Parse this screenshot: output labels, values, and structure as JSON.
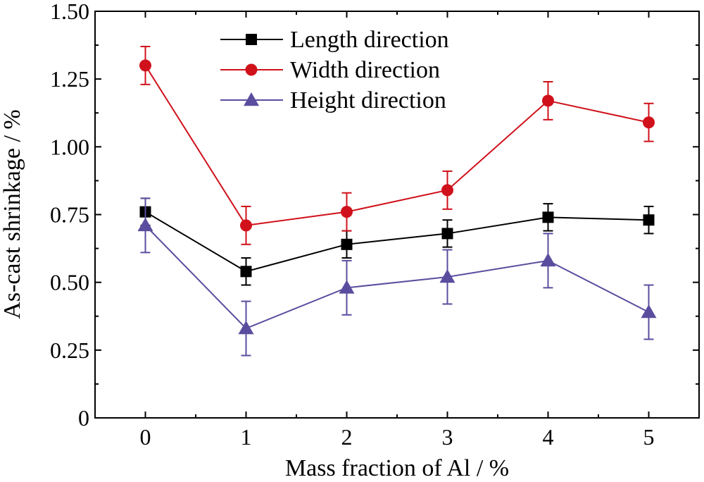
{
  "colors": {
    "length": "#000000",
    "width": "#d0111b",
    "height": "#5b4d9e"
  },
  "chart_data": {
    "type": "line",
    "xlabel": "Mass fraction of Al / %",
    "ylabel": "As-cast shrinkage / %",
    "xlim": [
      -0.5,
      5.5
    ],
    "ylim": [
      0,
      1.5
    ],
    "x_ticks": [
      "0",
      "1",
      "2",
      "3",
      "4",
      "5"
    ],
    "y_ticks": [
      "0",
      "0.25",
      "0.50",
      "0.75",
      "1.00",
      "1.25",
      "1.50"
    ],
    "grid": false,
    "legend_position": "top-center",
    "x": [
      0,
      1,
      2,
      3,
      4,
      5
    ],
    "series": [
      {
        "name": "Length direction",
        "marker": "square",
        "values": [
          0.76,
          0.54,
          0.64,
          0.68,
          0.74,
          0.73
        ],
        "error": [
          0.05,
          0.05,
          0.05,
          0.05,
          0.05,
          0.05
        ]
      },
      {
        "name": "Width direction",
        "marker": "circle",
        "values": [
          1.3,
          0.71,
          0.76,
          0.84,
          1.17,
          1.09
        ],
        "error": [
          0.07,
          0.07,
          0.07,
          0.07,
          0.07,
          0.07
        ]
      },
      {
        "name": "Height direction",
        "marker": "triangle",
        "values": [
          0.71,
          0.33,
          0.48,
          0.52,
          0.58,
          0.39
        ],
        "error": [
          0.1,
          0.1,
          0.1,
          0.1,
          0.1,
          0.1
        ]
      }
    ]
  }
}
